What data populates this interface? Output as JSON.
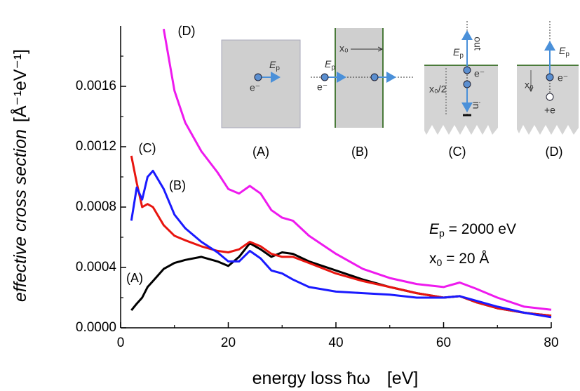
{
  "chart_data": {
    "type": "line",
    "ylabel": "effective cross section",
    "ylabel_unit": "[Å⁻¹eV⁻¹]",
    "xlabel": "energy loss ħω",
    "xlabel_unit": "[eV]",
    "x": [
      2,
      3,
      4,
      5,
      6,
      8,
      10,
      12,
      15,
      18,
      20,
      22,
      24,
      26,
      28,
      30,
      32,
      35,
      40,
      45,
      50,
      55,
      60,
      63,
      66,
      70,
      75,
      80
    ],
    "series": [
      {
        "name": "(A)",
        "color": "#000000",
        "values": [
          0.000116,
          0.00016,
          0.0002,
          0.00027,
          0.00031,
          0.00039,
          0.00043,
          0.00045,
          0.00047,
          0.00044,
          0.00041,
          0.00047,
          0.00056,
          0.00052,
          0.00047,
          0.0005,
          0.00049,
          0.00044,
          0.00038,
          0.00032,
          0.00027,
          0.00023,
          0.0002,
          0.00021,
          0.00017,
          0.00013,
          0.0001,
          8e-05
        ]
      },
      {
        "name": "(C)",
        "color": "#e8150f",
        "values": [
          0.00114,
          0.00096,
          0.0008,
          0.00082,
          0.0008,
          0.00068,
          0.00061,
          0.00058,
          0.00054,
          0.00051,
          0.0005,
          0.00052,
          0.00057,
          0.00054,
          0.00049,
          0.00047,
          0.00047,
          0.00043,
          0.00036,
          0.00031,
          0.00027,
          0.00023,
          0.0002,
          0.00021,
          0.00017,
          0.00013,
          0.0001,
          8e-05
        ]
      },
      {
        "name": "(B)",
        "color": "#1a1aff",
        "values": [
          0.00071,
          0.00093,
          0.00085,
          0.001,
          0.00104,
          0.00092,
          0.00075,
          0.00066,
          0.00057,
          0.0005,
          0.00044,
          0.00044,
          0.00051,
          0.00046,
          0.00038,
          0.00036,
          0.00032,
          0.00027,
          0.00024,
          0.00023,
          0.00022,
          0.0002,
          0.0002,
          0.00021,
          0.00018,
          0.00014,
          0.0001,
          7e-05
        ]
      },
      {
        "name": "(D)",
        "color": "#ee1aee",
        "values": [
          null,
          null,
          null,
          null,
          null,
          0.00198,
          0.00157,
          0.00136,
          0.00117,
          0.00103,
          0.00092,
          0.00089,
          0.00094,
          0.00089,
          0.00078,
          0.00073,
          0.00071,
          0.00061,
          0.00049,
          0.00039,
          0.00033,
          0.00029,
          0.00027,
          0.0003,
          0.00026,
          0.0002,
          0.00014,
          0.00012
        ]
      }
    ],
    "xlim": [
      0,
      80
    ],
    "xticks": [
      0,
      20,
      40,
      60,
      80
    ],
    "xminorticks": [
      10,
      30,
      50,
      70
    ],
    "ylim": [
      0,
      0.002
    ],
    "yticks": [
      {
        "value": 0,
        "label": "0.0000"
      },
      {
        "value": 0.0004,
        "label": "0.0004"
      },
      {
        "value": 0.0008,
        "label": "0.0008"
      },
      {
        "value": 0.0012,
        "label": "0.0012"
      },
      {
        "value": 0.0016,
        "label": "0.0016"
      }
    ],
    "yminorticks": [
      0.0002,
      0.0006,
      0.001,
      0.0014,
      0.0018
    ],
    "annotations": {
      "ep": [
        "E",
        "p",
        " = 2000 eV"
      ],
      "x0": [
        "x",
        "0",
        " = 20 Å"
      ]
    }
  },
  "inset": {
    "captions": [
      "(A)",
      "(B)",
      "(C)",
      "(D)"
    ],
    "E": "E",
    "p": "p",
    "electron": "e⁻",
    "xo": "x₀",
    "xo_half": "x₀/2",
    "out": "out",
    "in": "in",
    "hole": "+e"
  }
}
